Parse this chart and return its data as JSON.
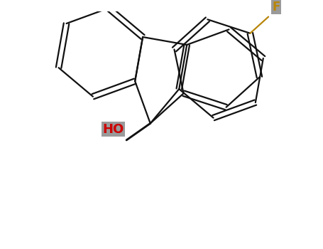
{
  "bg_color": "#ffffff",
  "bond_color": "#111111",
  "ho_color": "#cc0000",
  "f_color": "#b8860b",
  "bond_lw": 1.6,
  "double_sep": 0.06,
  "fig_width": 4.55,
  "fig_height": 3.5,
  "dpi": 100,
  "font_size_ho": 13,
  "font_size_f": 12,
  "ho_label": "HO",
  "f_label": "F",
  "ho_bg": "#888888",
  "f_bg": "#888888",
  "xlim": [
    -3.0,
    3.5
  ],
  "ylim": [
    -2.8,
    2.5
  ]
}
